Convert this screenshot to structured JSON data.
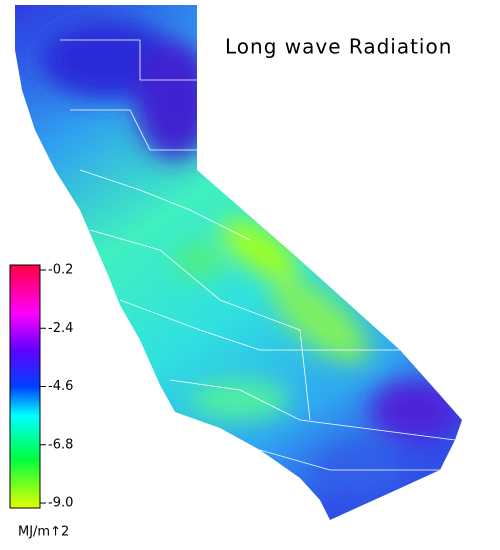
{
  "title": "Long wave Radiation",
  "colorbar": {
    "lim": [
      -9,
      -0.2
    ],
    "ticks": [
      -0.2,
      -2.4,
      -4.6,
      -6.8,
      {
        "value": -9,
        "label": "-9.0"
      }
    ],
    "unit": "MJ/m↑2"
  }
}
